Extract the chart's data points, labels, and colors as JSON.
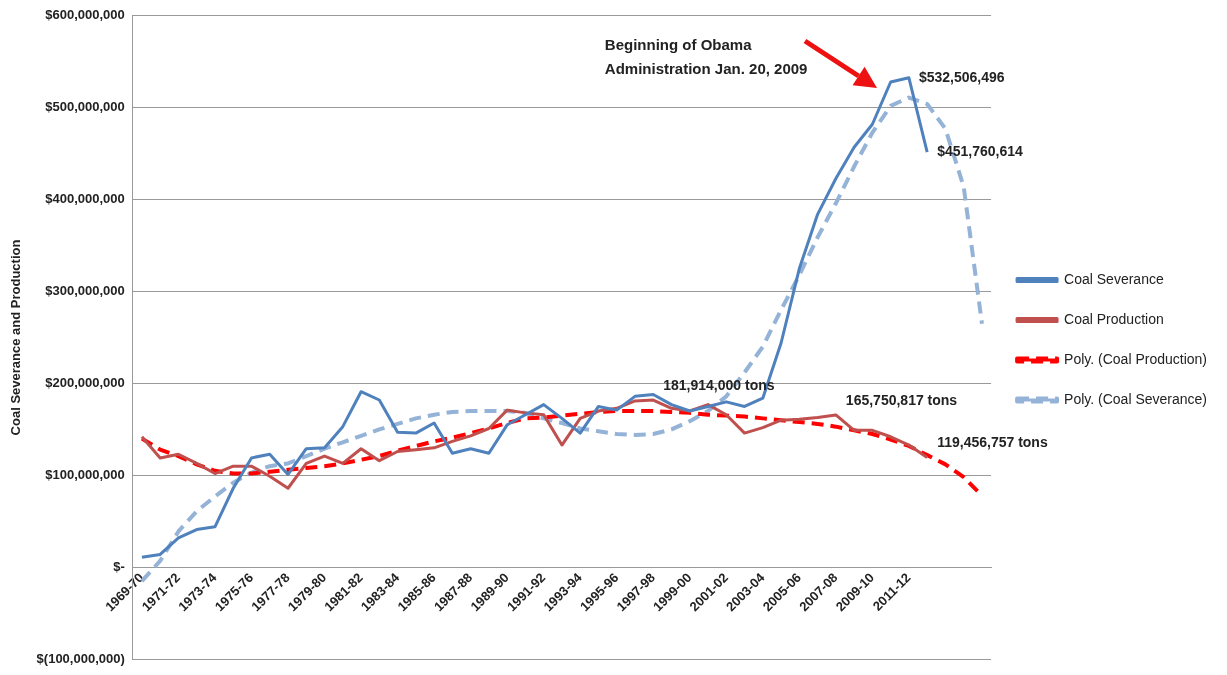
{
  "chart_data": {
    "type": "line",
    "ylabel": "Coal Severance and Production",
    "categories": [
      "1969-70",
      null,
      "1971-72",
      null,
      "1973-74",
      null,
      "1975-76",
      null,
      "1977-78",
      null,
      "1979-80",
      null,
      "1981-82",
      null,
      "1983-84",
      null,
      "1985-86",
      null,
      "1987-88",
      null,
      "1989-90",
      null,
      "1991-92",
      null,
      "1993-94",
      null,
      "1995-96",
      null,
      "1997-98",
      null,
      "1999-00",
      null,
      "2001-02",
      null,
      "2003-04",
      null,
      "2005-06",
      null,
      "2007-08",
      null,
      "2009-10",
      null,
      "2011-12",
      null,
      null,
      null,
      null
    ],
    "series": [
      {
        "name": "Coal Severance",
        "color": "#4f81bd",
        "line_style": "solid",
        "values": [
          11000000,
          14000000,
          32000000,
          41000000,
          44000000,
          86000000,
          119000000,
          123000000,
          101000000,
          129000000,
          130000000,
          153000000,
          191000000,
          182000000,
          147000000,
          146000000,
          157000000,
          124000000,
          129000000,
          124000000,
          155000000,
          166000000,
          177000000,
          162000000,
          146000000,
          175000000,
          171000000,
          186000000,
          188000000,
          177000000,
          170000000,
          175000000,
          180000000,
          175000000,
          184000000,
          244000000,
          325000000,
          384000000,
          423000000,
          457000000,
          482000000,
          528000000,
          532506496,
          451760614,
          null,
          null,
          null
        ],
        "value_labels": [
          null,
          null,
          null,
          null,
          null,
          null,
          null,
          null,
          null,
          null,
          null,
          null,
          null,
          null,
          null,
          null,
          null,
          null,
          null,
          null,
          null,
          null,
          null,
          null,
          null,
          null,
          null,
          null,
          null,
          null,
          null,
          null,
          null,
          null,
          null,
          null,
          null,
          null,
          null,
          null,
          null,
          null,
          "$532,506,496",
          "$451,760,614",
          null,
          null,
          null
        ]
      },
      {
        "name": "Coal Production",
        "color": "#c0504d",
        "line_style": "solid",
        "values": [
          142000000,
          119000000,
          123000000,
          113000000,
          102000000,
          110000000,
          110000000,
          99000000,
          86000000,
          113000000,
          121000000,
          113000000,
          129000000,
          116000000,
          126000000,
          128000000,
          130000000,
          137000000,
          143000000,
          151000000,
          171000000,
          168000000,
          166000000,
          133000000,
          162000000,
          170000000,
          173000000,
          181000000,
          181914000,
          173000000,
          170000000,
          177000000,
          166000000,
          146000000,
          152000000,
          160000000,
          161000000,
          163000000,
          165750817,
          149000000,
          149000000,
          142000000,
          133000000,
          119456757,
          null,
          null,
          null
        ],
        "value_labels": [
          null,
          null,
          null,
          null,
          null,
          null,
          null,
          null,
          null,
          null,
          null,
          null,
          null,
          null,
          null,
          null,
          null,
          null,
          null,
          null,
          null,
          null,
          null,
          null,
          null,
          null,
          null,
          null,
          "181,914,000 tons",
          null,
          null,
          null,
          null,
          null,
          null,
          null,
          null,
          null,
          "165,750,817 tons",
          null,
          null,
          null,
          null,
          "119,456,757 tons",
          null,
          null,
          null
        ]
      },
      {
        "name": "Poly. (Coal Production)",
        "color": "#ff0000",
        "line_style": "dashed",
        "values": [
          140000000,
          128000000,
          121000000,
          112000000,
          105000000,
          102000000,
          102000000,
          104000000,
          106000000,
          108000000,
          110000000,
          113000000,
          117000000,
          121000000,
          127000000,
          132000000,
          137000000,
          141000000,
          146000000,
          151000000,
          157000000,
          162000000,
          163000000,
          165000000,
          167000000,
          169000000,
          170000000,
          170000000,
          170000000,
          169000000,
          168000000,
          166000000,
          165000000,
          164000000,
          162000000,
          160000000,
          158000000,
          156000000,
          153000000,
          149000000,
          145000000,
          139000000,
          132000000,
          122000000,
          112000000,
          98000000,
          78000000
        ]
      },
      {
        "name": "Poly. (Coal Severance)",
        "color": "#95b3d7",
        "line_style": "dashed",
        "values": [
          -15000000,
          7000000,
          39000000,
          61000000,
          77000000,
          92000000,
          103000000,
          110000000,
          113000000,
          121000000,
          129000000,
          136000000,
          143000000,
          150000000,
          156000000,
          162000000,
          166000000,
          169000000,
          170000000,
          170000000,
          170000000,
          168000000,
          162000000,
          157000000,
          151000000,
          148000000,
          145000000,
          144000000,
          145000000,
          150000000,
          159000000,
          170000000,
          186000000,
          212000000,
          240000000,
          280000000,
          318000000,
          359000000,
          396000000,
          436000000,
          473000000,
          502000000,
          511000000,
          504000000,
          477000000,
          414000000,
          265000000
        ]
      }
    ],
    "ylim": [
      -100000000,
      600000000
    ],
    "yticks": [
      {
        "value": -100000000,
        "label": "$(100,000,000)"
      },
      {
        "value": 0,
        "label": "$-"
      },
      {
        "value": 100000000,
        "label": "$100,000,000"
      },
      {
        "value": 200000000,
        "label": "$200,000,000"
      },
      {
        "value": 300000000,
        "label": "$300,000,000"
      },
      {
        "value": 400000000,
        "label": "$400,000,000"
      },
      {
        "value": 500000000,
        "label": "$500,000,000"
      },
      {
        "value": 600000000,
        "label": "$600,000,000"
      }
    ],
    "grid": "y",
    "legend": "right",
    "marker": "none",
    "annotations": [
      "Beginning of Obama Administration Jan. 20, 2009"
    ]
  }
}
